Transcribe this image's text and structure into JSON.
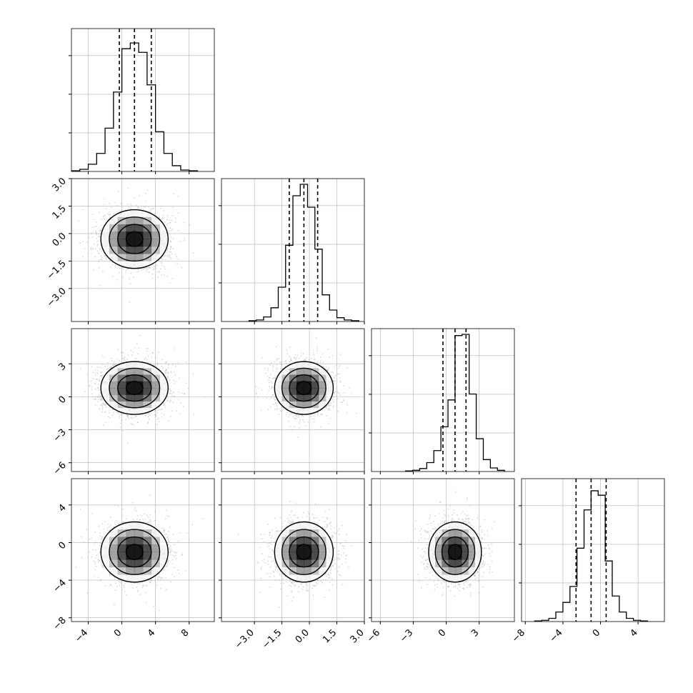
{
  "figure": {
    "title": "",
    "colors": {
      "line": "#000000",
      "grid": "#b0b0b0",
      "points": "#a8a8a8",
      "density": "#000000"
    }
  },
  "chart_data": {
    "type": "corner",
    "grid": true,
    "variables": [
      {
        "range": [
          -6,
          11
        ],
        "hist_max": 190,
        "mean": 1.5,
        "std": 2.0,
        "quantiles": [
          -0.3,
          1.5,
          3.5
        ],
        "ticks": [
          -4,
          0,
          4,
          8
        ],
        "tick_labels": [
          "−4",
          "0",
          "4",
          "8"
        ]
      },
      {
        "range": [
          -4.8,
          3.0
        ],
        "hist_max": 180,
        "mean": -0.3,
        "std": 0.8,
        "quantiles": [
          -1.1,
          -0.3,
          0.45
        ],
        "ticks": [
          -3.0,
          -1.5,
          0.0,
          1.5,
          3.0
        ],
        "tick_labels": [
          "−3.0",
          "−1.5",
          "0.0",
          "1.5",
          "3.0"
        ]
      },
      {
        "range": [
          -6.8,
          6.2
        ],
        "hist_max": 230,
        "mean": 0.8,
        "std": 1.2,
        "quantiles": [
          -0.3,
          0.8,
          1.8
        ],
        "ticks": [
          -6,
          -3,
          0,
          3
        ],
        "tick_labels": [
          "−6",
          "−3",
          "0",
          "3"
        ]
      },
      {
        "range": [
          -8.4,
          6.8
        ],
        "hist_max": 215,
        "mean": -1.0,
        "std": 1.6,
        "quantiles": [
          -2.6,
          -1.0,
          0.6
        ],
        "ticks": [
          -8,
          -4,
          0,
          4
        ],
        "tick_labels": [
          "−8",
          "−4",
          "0",
          "4"
        ]
      }
    ],
    "histograms": [
      [
        1,
        3,
        10,
        25,
        60,
        110,
        170,
        178,
        165,
        120,
        55,
        25,
        8,
        2,
        1
      ],
      [
        1,
        2,
        6,
        18,
        45,
        100,
        165,
        180,
        150,
        95,
        35,
        15,
        5,
        2,
        1
      ],
      [
        1,
        2,
        5,
        15,
        35,
        75,
        120,
        228,
        230,
        130,
        55,
        20,
        6,
        2
      ],
      [
        1,
        2,
        5,
        15,
        30,
        55,
        115,
        175,
        205,
        198,
        95,
        40,
        15,
        5,
        2,
        1
      ]
    ],
    "histogram_ylim": [
      [
        0,
        190
      ],
      [
        0,
        180
      ],
      [
        0,
        230
      ],
      [
        0,
        215
      ]
    ],
    "contour_levels": [
      0.118,
      0.393,
      0.675,
      0.865
    ],
    "ylabels": [
      "",
      "",
      "",
      ""
    ],
    "xlabels": [
      "",
      "",
      "",
      ""
    ]
  }
}
